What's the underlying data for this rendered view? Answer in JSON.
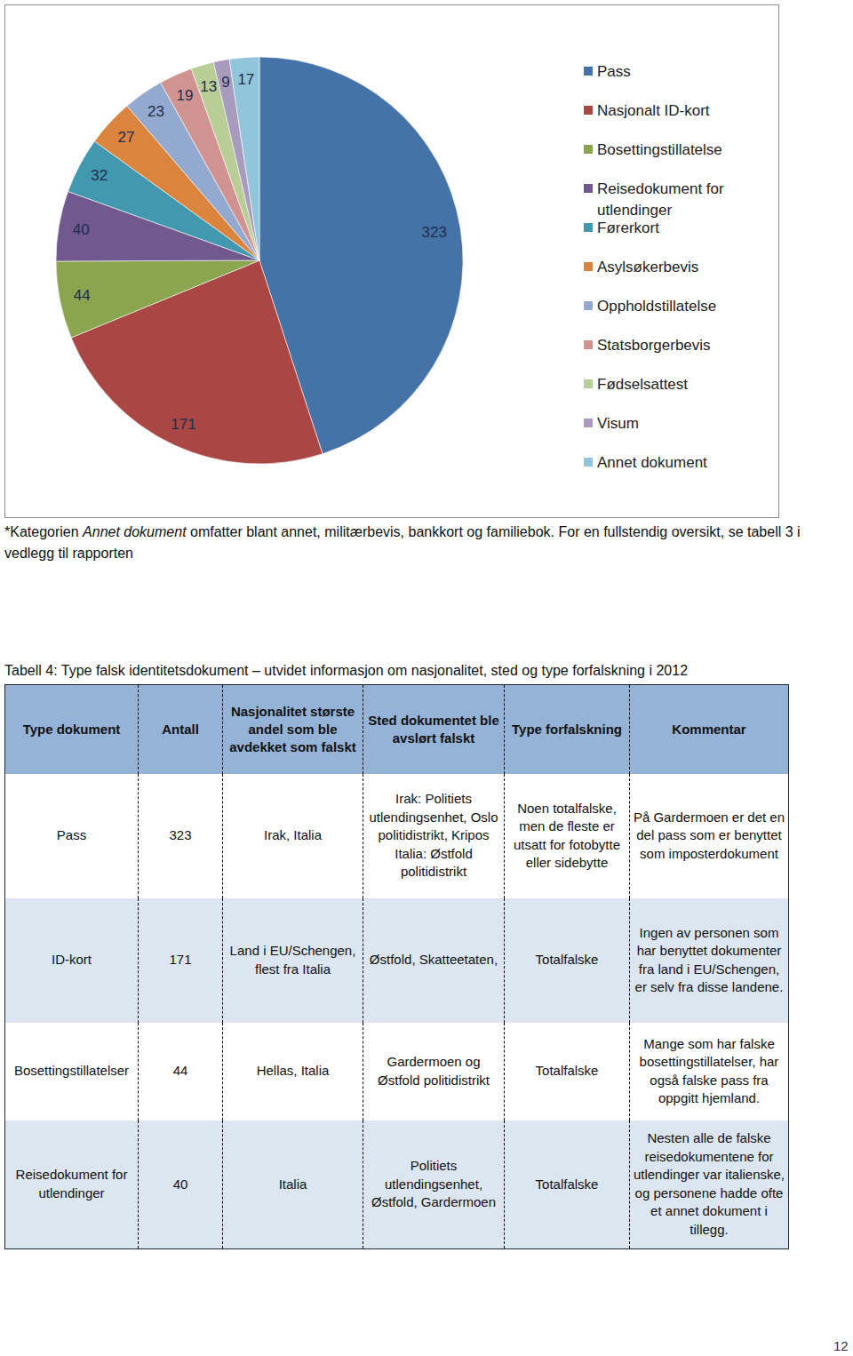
{
  "chart_data": {
    "type": "pie",
    "categories": [
      "Pass",
      "Nasjonalt ID-kort",
      "Bosettingstillatelse",
      "Reisedokument for utlendinger",
      "Førerkort",
      "Asylsøkerbevis",
      "Oppholdstillatelse",
      "Statsborgerbevis",
      "Fødselsattest",
      "Visum",
      "Annet dokument"
    ],
    "values": [
      323,
      171,
      44,
      40,
      32,
      27,
      23,
      19,
      13,
      9,
      17
    ],
    "colors": [
      "#4572a7",
      "#aa4643",
      "#89a54e",
      "#71588f",
      "#4198af",
      "#db843d",
      "#93a9cf",
      "#d19392",
      "#b9cd96",
      "#a99bbd",
      "#92c5d9"
    ],
    "data_labels": true,
    "legend": "right"
  },
  "footnote": {
    "before": "*Kategorien ",
    "italic": "Annet dokument",
    "after": " omfatter blant annet, militærbevis, bankkort og familiebok. For en fullstendig oversikt, se tabell 3 i vedlegg til rapporten"
  },
  "table": {
    "caption": "Tabell 4: Type falsk identitetsdokument – utvidet informasjon om nasjonalitet, sted og type forfalskning i 2012",
    "header": [
      "Type dokument",
      "Antall",
      "Nasjonalitet største andel som ble avdekket som falskt",
      "Sted dokumentet ble avslørt falskt",
      "Type forfalskning",
      "Kommentar"
    ],
    "rows": [
      [
        "Pass",
        323,
        "Irak, Italia",
        [
          "Irak: Politiets utlendingsenhet, Oslo politidistrikt, Kripos",
          "Italia: Østfold politidistrikt"
        ],
        "Noen totalfalske, men de fleste er utsatt for fotobytte eller sidebytte",
        "På Gardermoen er det en del pass som er benyttet som imposterdokument"
      ],
      [
        "ID-kort",
        171,
        "Land i EU/Schengen, flest fra Italia",
        "Østfold, Skatteetaten,",
        "Totalfalske",
        "Ingen av personen som har benyttet dokumenter fra land i EU/Schengen, er selv fra disse landene."
      ],
      [
        "Bosettingstillatelser",
        44,
        "Hellas, Italia",
        "Gardermoen og Østfold politidistrikt",
        "Totalfalske",
        "Mange som har falske bosettingstillatelser, har også falske pass fra oppgitt hjemland."
      ],
      [
        "Reisedokument for utlendinger",
        40,
        "Italia",
        "Politiets utlendingsenhet, Østfold, Gardermoen",
        "Totalfalske",
        "Nesten alle de falske reisedokumentene for utlendinger var italienske, og personene hadde ofte et annet dokument i tillegg."
      ]
    ]
  },
  "page_number": "12"
}
